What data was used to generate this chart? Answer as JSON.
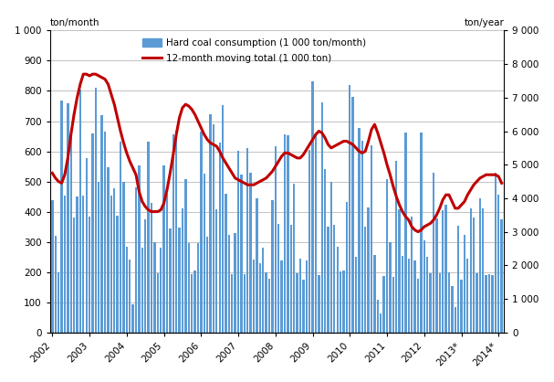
{
  "ylabel_left": "ton/month",
  "ylabel_right": "ton/year",
  "ylim_left": [
    0,
    1000
  ],
  "ylim_right": [
    0,
    9000
  ],
  "yticks_left": [
    0,
    100,
    200,
    300,
    400,
    500,
    600,
    700,
    800,
    900,
    1000
  ],
  "yticks_right": [
    0,
    1000,
    2000,
    3000,
    4000,
    5000,
    6000,
    7000,
    8000,
    9000
  ],
  "ytick_labels_left": [
    "0",
    "100",
    "200",
    "300",
    "400",
    "500",
    "600",
    "700",
    "800",
    "900",
    "1 000"
  ],
  "ytick_labels_right": [
    "0",
    "1 000",
    "2 000",
    "3 000",
    "4 000",
    "5 000",
    "6 000",
    "7 000",
    "8 000",
    "9 000"
  ],
  "bar_color": "#5B9BD5",
  "line_color": "#C00000",
  "line_width": 2.2,
  "legend1": "Hard coal consumption (1 000 ton/month)",
  "legend2": "12-month moving total (1 000 ton)",
  "xtick_labels": [
    "2002",
    "2003",
    "2004",
    "2005",
    "2006",
    "2007",
    "2008",
    "2009",
    "2010",
    "2011",
    "2012",
    "2013*",
    "2014*"
  ],
  "bar_values": [
    437,
    321,
    199,
    767,
    453,
    760,
    666,
    381,
    449,
    803,
    452,
    576,
    383,
    659,
    810,
    500,
    721,
    664,
    546,
    452,
    476,
    386,
    633,
    498,
    283,
    241,
    94,
    479,
    553,
    280,
    375,
    632,
    430,
    300,
    197,
    282,
    553,
    459,
    344,
    657,
    668,
    346,
    410,
    508,
    297,
    193,
    205,
    295,
    666,
    527,
    317,
    723,
    690,
    409,
    630,
    752,
    460,
    323,
    193,
    330,
    601,
    523,
    192,
    610,
    529,
    242,
    445,
    228,
    282,
    199,
    178,
    437,
    617,
    359,
    237,
    657,
    652,
    356,
    493,
    195,
    245,
    176,
    239,
    606,
    831,
    657,
    191,
    762,
    540,
    350,
    500,
    357,
    285,
    203,
    204,
    431,
    820,
    780,
    250,
    677,
    634,
    350,
    415,
    620,
    255,
    108,
    64,
    186,
    508,
    300,
    185,
    569,
    407,
    253,
    661,
    244,
    383,
    237,
    179,
    661,
    305,
    249,
    197,
    529,
    378,
    197,
    406,
    424,
    198,
    154,
    84,
    353,
    175,
    323,
    244,
    411,
    382,
    197,
    445,
    411,
    191,
    193,
    190,
    529,
    456,
    374
  ],
  "line_values": [
    4750,
    4600,
    4500,
    4450,
    4700,
    5200,
    5900,
    6500,
    7000,
    7400,
    7700,
    7700,
    7650,
    7700,
    7700,
    7650,
    7600,
    7550,
    7400,
    7100,
    6800,
    6400,
    6000,
    5650,
    5350,
    5100,
    4900,
    4700,
    4200,
    3900,
    3750,
    3650,
    3600,
    3600,
    3600,
    3650,
    3850,
    4250,
    4750,
    5300,
    5900,
    6400,
    6700,
    6800,
    6750,
    6650,
    6500,
    6300,
    6100,
    5900,
    5750,
    5650,
    5600,
    5550,
    5400,
    5200,
    5050,
    4900,
    4750,
    4600,
    4550,
    4500,
    4450,
    4400,
    4400,
    4400,
    4450,
    4500,
    4550,
    4600,
    4700,
    4800,
    4950,
    5100,
    5250,
    5350,
    5350,
    5300,
    5250,
    5200,
    5200,
    5300,
    5450,
    5600,
    5750,
    5900,
    6000,
    5950,
    5800,
    5600,
    5500,
    5550,
    5600,
    5650,
    5700,
    5700,
    5650,
    5600,
    5500,
    5400,
    5350,
    5400,
    5700,
    6050,
    6200,
    5950,
    5650,
    5350,
    5000,
    4700,
    4350,
    4050,
    3800,
    3600,
    3450,
    3350,
    3150,
    3050,
    3000,
    3050,
    3150,
    3200,
    3250,
    3350,
    3500,
    3700,
    3950,
    4100,
    4100,
    3900,
    3700,
    3700,
    3800,
    3900,
    4100,
    4250,
    4400,
    4500,
    4600,
    4650,
    4700,
    4700,
    4700,
    4700,
    4650,
    4450
  ],
  "n_bars": 146,
  "background_color": "#FFFFFF",
  "grid_color": "#AAAAAA",
  "months_per_year": [
    12,
    12,
    12,
    12,
    12,
    12,
    12,
    12,
    12,
    12,
    12,
    12,
    2
  ]
}
